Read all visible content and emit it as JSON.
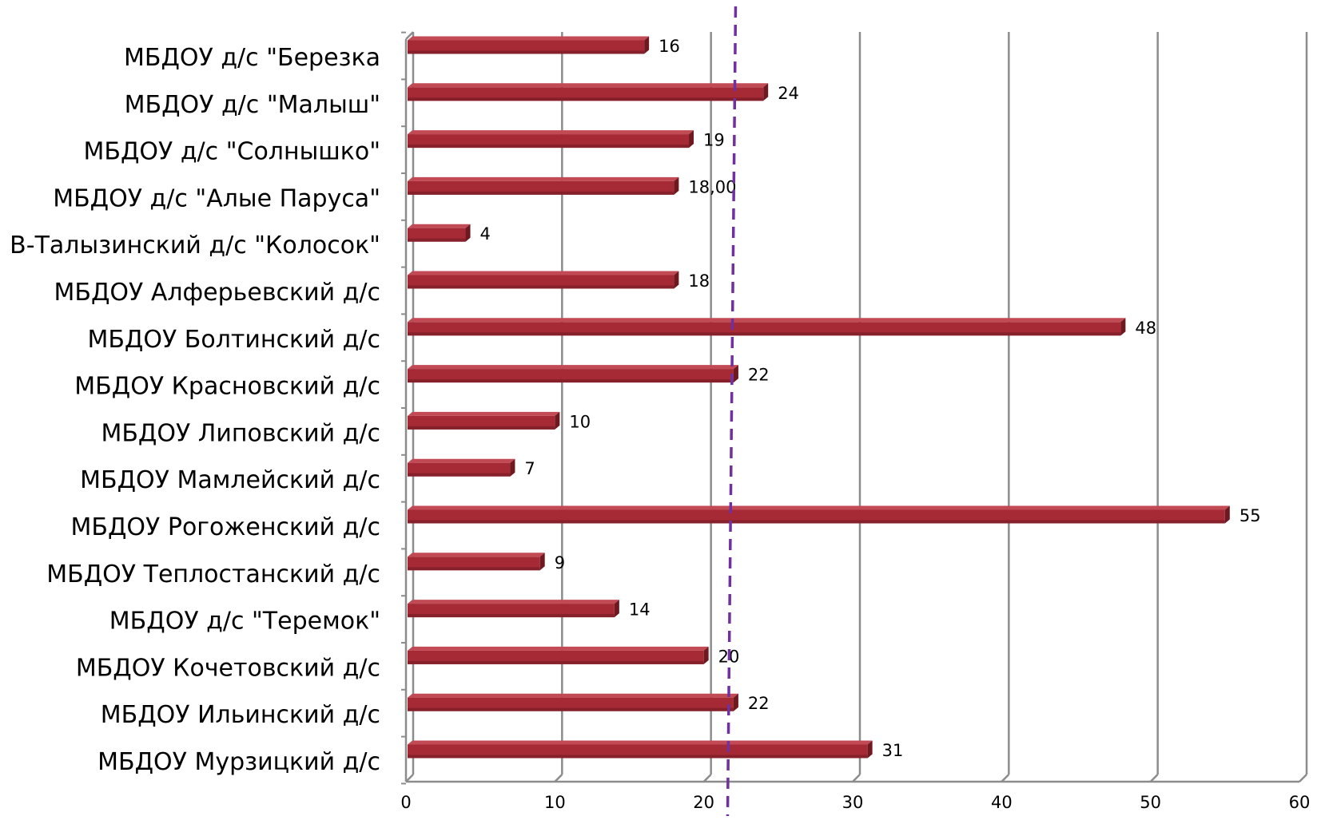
{
  "chart_data": {
    "type": "bar",
    "orientation": "horizontal",
    "categories": [
      "МБДОУ д/с \"Березка",
      "МБДОУ д/с \"Малыш\"",
      "МБДОУ д/с \"Солнышко\"",
      "МБДОУ  д/с \"Алые Паруса\"",
      "В-Талызинский д/с \"Колосок\"",
      "МБДОУ Алферьевский д/с",
      "МБДОУ Болтинский д/с",
      "МБДОУ Красновский д/с",
      "МБДОУ Липовский д/с",
      "МБДОУ Мамлейский д/с",
      "МБДОУ Рогоженский д/с",
      "МБДОУ Теплостанский д/с",
      "МБДОУ д/с \"Теремок\"",
      "МБДОУ Кочетовский д/с",
      "МБДОУ Ильинский д/с",
      "МБДОУ Мурзицкий д/с"
    ],
    "values": [
      16,
      24,
      19,
      18,
      4,
      18,
      48,
      22,
      10,
      7,
      55,
      9,
      14,
      20,
      22,
      31
    ],
    "data_labels": [
      "16",
      "24",
      "19",
      "18,00",
      "4",
      "18",
      "48",
      "22",
      "10",
      "7",
      "55",
      "9",
      "14",
      "20",
      "22",
      "31"
    ],
    "xlim": [
      0,
      60
    ],
    "x_ticks": [
      "0",
      "10",
      "20",
      "30",
      "40",
      "50",
      "60"
    ],
    "grid": true,
    "reference_line": {
      "value": 21.6,
      "style": "dashed"
    },
    "colors": {
      "bar": "#a52a35",
      "bar_side": "#6e1820",
      "bar_top": "#c24a55",
      "grid": "#8c8c8c",
      "reference": "#7030a0"
    }
  }
}
